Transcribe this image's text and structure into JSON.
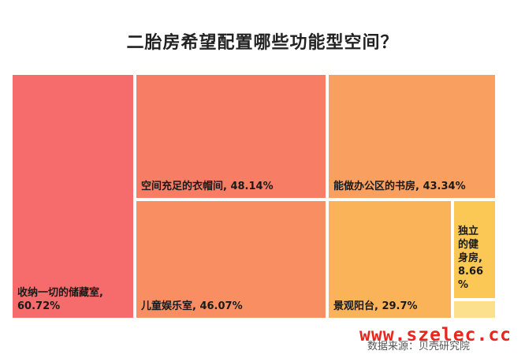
{
  "chart_data": {
    "type": "treemap",
    "title": "二胎房希望配置哪些功能型空间？",
    "items": [
      {
        "label": "收纳一切的储藏室",
        "value": 60.72,
        "value_text": "60.72%",
        "color": "#f66b6b"
      },
      {
        "label": "空间充足的衣帽间",
        "value": 48.14,
        "value_text": "48.14%",
        "color": "#f77d64"
      },
      {
        "label": "儿童娱乐室",
        "value": 46.07,
        "value_text": "46.07%",
        "color": "#f98e63"
      },
      {
        "label": "能做办公区的书房",
        "value": 43.34,
        "value_text": "43.34%",
        "color": "#f9a060"
      },
      {
        "label": "景观阳台",
        "value": 29.7,
        "value_text": "29.7%",
        "color": "#fbb35a"
      },
      {
        "label": "独立的健身房",
        "value": 8.66,
        "value_text": "8.66\n%",
        "color": "#fcc855"
      },
      {
        "label": "",
        "value": null,
        "value_text": "",
        "color": "#fde08e"
      }
    ],
    "source": "数据来源：贝壳研究院"
  },
  "watermark": "www.szelec.cc"
}
